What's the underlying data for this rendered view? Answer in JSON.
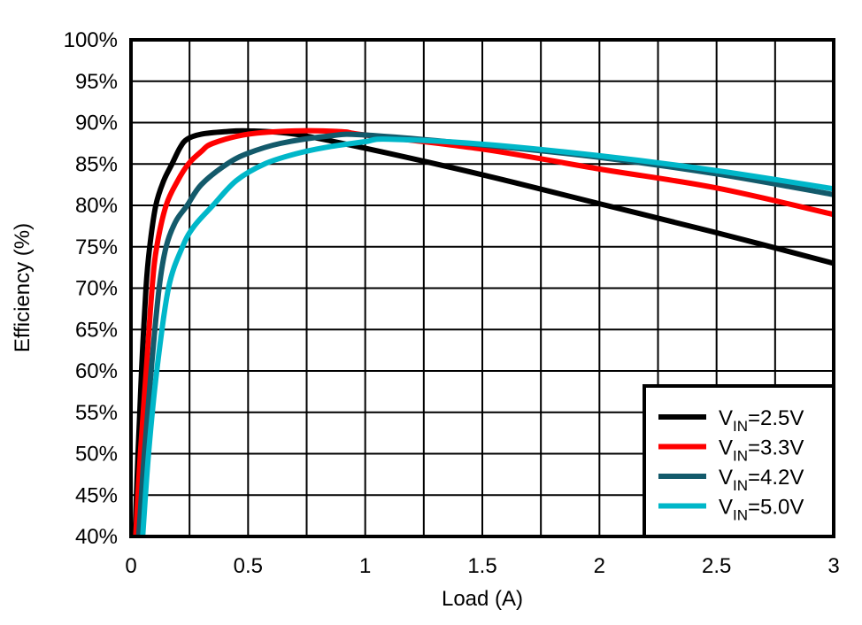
{
  "chart_data": {
    "type": "line",
    "title": "",
    "xlabel": "Load (A)",
    "ylabel": "Efficiency (%)",
    "xlim": [
      0,
      3
    ],
    "ylim": [
      40,
      100
    ],
    "x_ticks": [
      "0",
      "0.5",
      "1",
      "1.5",
      "2",
      "2.5",
      "3"
    ],
    "x_tick_values": [
      0,
      0.5,
      1,
      1.5,
      2,
      2.5,
      3
    ],
    "y_ticks": [
      "40%",
      "45%",
      "50%",
      "55%",
      "60%",
      "65%",
      "70%",
      "75%",
      "80%",
      "85%",
      "90%",
      "95%",
      "100%"
    ],
    "y_tick_values": [
      40,
      45,
      50,
      55,
      60,
      65,
      70,
      75,
      80,
      85,
      90,
      95,
      100
    ],
    "grid": true,
    "x_minor_grid_step": 0.25,
    "legend_position": "bottom-right",
    "series": [
      {
        "name": "VIN=2.5V",
        "label_main": "V",
        "label_sub": "IN",
        "label_rest": "=2.5V",
        "color": "#000000",
        "x": [
          0.017,
          0.03,
          0.045,
          0.064,
          0.08,
          0.106,
          0.14,
          0.175,
          0.21,
          0.24,
          0.3,
          0.4,
          0.5,
          0.7,
          1.0,
          1.5,
          2.0,
          2.5,
          3.0
        ],
        "y": [
          40,
          50,
          60,
          70,
          75,
          80,
          83,
          85,
          87,
          88,
          88.6,
          88.9,
          89,
          88.6,
          86.9,
          83.7,
          80.2,
          76.7,
          73
        ]
      },
      {
        "name": "VIN=3.3V",
        "label_main": "V",
        "label_sub": "IN",
        "label_rest": "=3.3V",
        "color": "#ff0000",
        "x": [
          0.02,
          0.04,
          0.065,
          0.09,
          0.11,
          0.15,
          0.2,
          0.245,
          0.3,
          0.35,
          0.5,
          0.7,
          0.9,
          1.0,
          1.5,
          2.0,
          2.5,
          3.0
        ],
        "y": [
          40,
          50,
          60,
          70,
          75,
          80,
          83,
          85,
          86.5,
          87.5,
          88.6,
          89,
          88.9,
          88.5,
          86.8,
          84.4,
          82.1,
          78.9
        ]
      },
      {
        "name": "VIN=4.2V",
        "label_main": "V",
        "label_sub": "IN",
        "label_rest": "=4.2V",
        "color": "#135a6b",
        "x": [
          0.033,
          0.057,
          0.086,
          0.12,
          0.15,
          0.19,
          0.24,
          0.3,
          0.41,
          0.5,
          0.64,
          0.85,
          1.0,
          1.5,
          2.0,
          2.5,
          3.0
        ],
        "y": [
          40,
          50,
          60,
          70,
          75,
          78,
          80,
          82.5,
          85,
          86.3,
          87.5,
          88.4,
          88.5,
          87.3,
          85.8,
          83.8,
          81.3
        ]
      },
      {
        "name": "VIN=5.0V",
        "label_main": "V",
        "label_sub": "IN",
        "label_rest": "=5.0V",
        "color": "#00b7c9",
        "x": [
          0.05,
          0.075,
          0.11,
          0.16,
          0.22,
          0.27,
          0.35,
          0.45,
          0.57,
          0.7,
          0.83,
          1.0,
          1.1,
          1.5,
          2.0,
          2.5,
          3.0
        ],
        "y": [
          40,
          50,
          60,
          70,
          75,
          77.5,
          80,
          83,
          85,
          86.2,
          87,
          87.7,
          88,
          87.4,
          86,
          84.2,
          82
        ]
      }
    ]
  }
}
